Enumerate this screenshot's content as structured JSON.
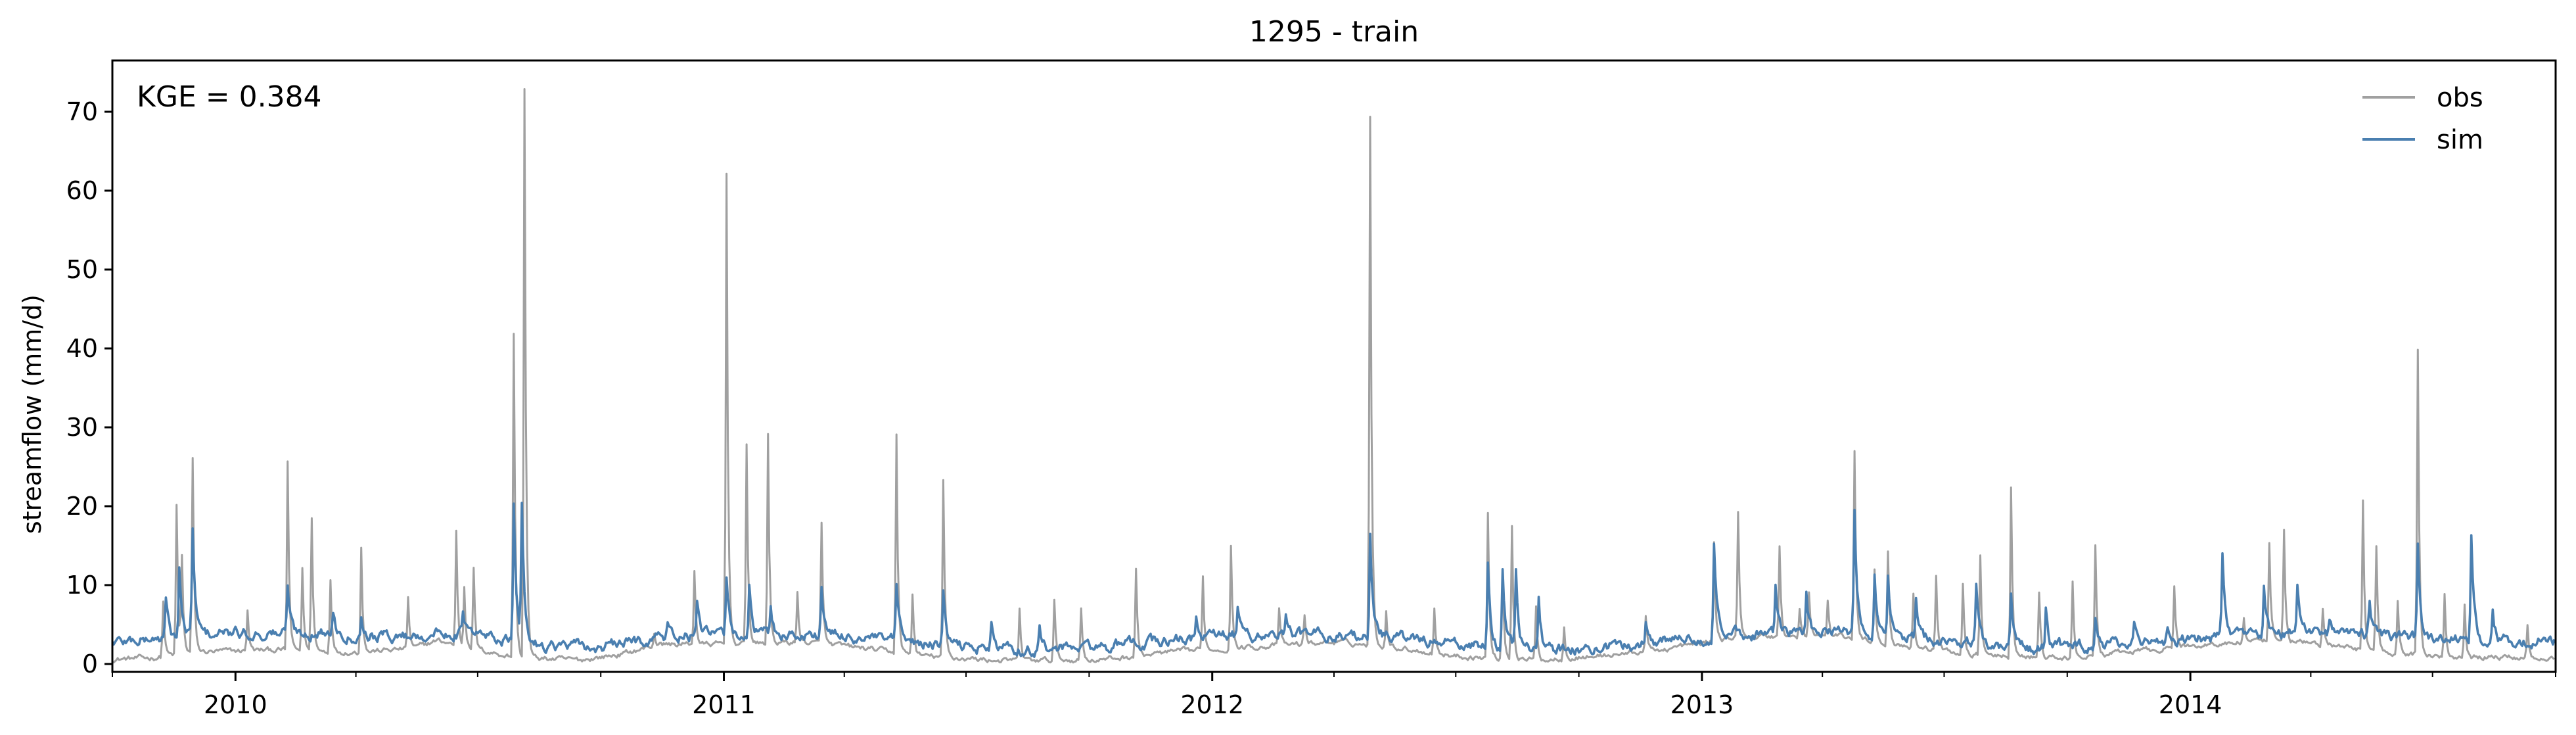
{
  "chart_data": {
    "type": "line",
    "title": "1295 - train",
    "xlabel": "",
    "ylabel": "streamflow (mm/d)",
    "annotation": "KGE = 0.384",
    "xlim": [
      "2009-10-01",
      "2014-09-30"
    ],
    "ylim": [
      -1,
      76.5
    ],
    "yticks": [
      0,
      10,
      20,
      30,
      40,
      50,
      60,
      70
    ],
    "xticks": [
      {
        "date": "2010-01-01",
        "label": "2010"
      },
      {
        "date": "2011-01-01",
        "label": "2011"
      },
      {
        "date": "2012-01-01",
        "label": "2012"
      },
      {
        "date": "2013-01-01",
        "label": "2013"
      },
      {
        "date": "2014-01-01",
        "label": "2014"
      }
    ],
    "legend_position": "top-right",
    "grid": false,
    "series": [
      {
        "name": "obs",
        "color": "#a0a0a0",
        "baseline": [
          [
            "2009-10-01",
            0.6
          ],
          [
            "2009-11-01",
            0.8
          ],
          [
            "2009-12-01",
            1.5
          ],
          [
            "2010-02-01",
            1.8
          ],
          [
            "2010-04-01",
            1.5
          ],
          [
            "2010-05-15",
            2.0
          ],
          [
            "2010-06-01",
            3.0
          ],
          [
            "2010-06-25",
            2.0
          ],
          [
            "2010-08-01",
            0.8
          ],
          [
            "2010-09-15",
            0.5
          ],
          [
            "2010-10-15",
            1.2
          ],
          [
            "2010-11-15",
            2.5
          ],
          [
            "2011-01-15",
            2.5
          ],
          [
            "2011-03-01",
            2.8
          ],
          [
            "2011-04-15",
            2.0
          ],
          [
            "2011-06-01",
            1.0
          ],
          [
            "2011-08-01",
            0.4
          ],
          [
            "2011-10-15",
            0.6
          ],
          [
            "2011-12-01",
            1.5
          ],
          [
            "2012-01-15",
            2.0
          ],
          [
            "2012-04-01",
            2.8
          ],
          [
            "2012-05-15",
            2.2
          ],
          [
            "2012-07-01",
            1.0
          ],
          [
            "2012-09-01",
            0.5
          ],
          [
            "2012-10-15",
            1.0
          ],
          [
            "2012-12-01",
            1.8
          ],
          [
            "2013-02-01",
            3.5
          ],
          [
            "2013-04-15",
            3.5
          ],
          [
            "2013-06-15",
            2.0
          ],
          [
            "2013-08-01",
            1.0
          ],
          [
            "2013-10-01",
            0.7
          ],
          [
            "2013-11-15",
            1.5
          ],
          [
            "2014-01-15",
            2.5
          ],
          [
            "2014-03-15",
            3.0
          ],
          [
            "2014-05-01",
            2.0
          ],
          [
            "2014-07-01",
            1.0
          ],
          [
            "2014-09-30",
            0.8
          ]
        ],
        "peaks": [
          [
            "2009-11-08",
            8
          ],
          [
            "2009-11-18",
            20
          ],
          [
            "2009-11-22",
            13
          ],
          [
            "2009-11-30",
            26
          ],
          [
            "2010-01-10",
            7
          ],
          [
            "2010-02-09",
            25.5
          ],
          [
            "2010-02-20",
            12
          ],
          [
            "2010-02-27",
            18.5
          ],
          [
            "2010-03-13",
            11
          ],
          [
            "2010-04-05",
            15
          ],
          [
            "2010-05-10",
            8.5
          ],
          [
            "2010-06-15",
            17
          ],
          [
            "2010-06-21",
            10
          ],
          [
            "2010-06-28",
            12
          ],
          [
            "2010-07-28",
            42
          ],
          [
            "2010-08-05",
            73
          ],
          [
            "2010-11-10",
            4
          ],
          [
            "2010-12-10",
            12
          ],
          [
            "2011-01-03",
            62
          ],
          [
            "2011-01-18",
            28
          ],
          [
            "2011-02-03",
            29
          ],
          [
            "2011-02-25",
            9
          ],
          [
            "2011-03-15",
            18
          ],
          [
            "2011-05-10",
            29
          ],
          [
            "2011-05-22",
            9
          ],
          [
            "2011-06-14",
            23
          ],
          [
            "2011-08-10",
            7
          ],
          [
            "2011-09-05",
            8
          ],
          [
            "2011-09-25",
            7
          ],
          [
            "2011-11-05",
            12
          ],
          [
            "2011-12-25",
            11
          ],
          [
            "2012-01-15",
            15
          ],
          [
            "2012-02-20",
            7
          ],
          [
            "2012-03-10",
            6
          ],
          [
            "2012-04-28",
            69.5
          ],
          [
            "2012-05-10",
            7
          ],
          [
            "2012-06-15",
            7
          ],
          [
            "2012-07-25",
            19
          ],
          [
            "2012-08-05",
            12
          ],
          [
            "2012-08-12",
            17.5
          ],
          [
            "2012-08-30",
            7
          ],
          [
            "2012-09-20",
            5
          ],
          [
            "2012-11-20",
            6
          ],
          [
            "2013-01-10",
            15.5
          ],
          [
            "2013-01-28",
            19
          ],
          [
            "2013-02-28",
            15
          ],
          [
            "2013-03-15",
            7
          ],
          [
            "2013-03-22",
            9
          ],
          [
            "2013-04-05",
            8
          ],
          [
            "2013-04-25",
            27
          ],
          [
            "2013-05-10",
            12
          ],
          [
            "2013-05-20",
            14.5
          ],
          [
            "2013-06-08",
            9
          ],
          [
            "2013-06-25",
            11
          ],
          [
            "2013-07-15",
            10
          ],
          [
            "2013-07-28",
            14
          ],
          [
            "2013-08-20",
            22.5
          ],
          [
            "2013-09-10",
            9
          ],
          [
            "2013-10-05",
            10
          ],
          [
            "2013-10-22",
            15
          ],
          [
            "2013-12-20",
            10
          ],
          [
            "2014-02-10",
            6
          ],
          [
            "2014-03-01",
            15
          ],
          [
            "2014-03-12",
            17
          ],
          [
            "2014-04-10",
            7
          ],
          [
            "2014-05-10",
            21
          ],
          [
            "2014-05-20",
            15
          ],
          [
            "2014-06-05",
            8
          ],
          [
            "2014-06-20",
            40
          ],
          [
            "2014-07-10",
            9
          ],
          [
            "2014-07-25",
            8
          ],
          [
            "2014-09-10",
            5
          ]
        ]
      },
      {
        "name": "sim",
        "color": "#4a7fb0",
        "baseline": [
          [
            "2009-10-01",
            2.8
          ],
          [
            "2009-12-15",
            3.8
          ],
          [
            "2010-03-01",
            4.0
          ],
          [
            "2010-05-01",
            3.5
          ],
          [
            "2010-06-15",
            4.0
          ],
          [
            "2010-08-15",
            2.5
          ],
          [
            "2010-10-01",
            2.0
          ],
          [
            "2010-11-15",
            3.5
          ],
          [
            "2011-02-01",
            3.8
          ],
          [
            "2011-04-01",
            3.5
          ],
          [
            "2011-06-01",
            2.5
          ],
          [
            "2011-08-15",
            1.8
          ],
          [
            "2011-10-15",
            2.2
          ],
          [
            "2012-01-01",
            3.5
          ],
          [
            "2012-03-01",
            3.8
          ],
          [
            "2012-05-15",
            3.5
          ],
          [
            "2012-07-01",
            2.5
          ],
          [
            "2012-09-01",
            1.8
          ],
          [
            "2012-10-15",
            2.0
          ],
          [
            "2012-12-15",
            3.2
          ],
          [
            "2013-02-01",
            3.8
          ],
          [
            "2013-05-01",
            4.0
          ],
          [
            "2013-07-01",
            3.0
          ],
          [
            "2013-09-01",
            2.0
          ],
          [
            "2013-10-15",
            2.3
          ],
          [
            "2013-12-15",
            3.0
          ],
          [
            "2014-03-01",
            3.8
          ],
          [
            "2014-05-15",
            3.8
          ],
          [
            "2014-07-15",
            3.0
          ],
          [
            "2014-09-30",
            3.0
          ]
        ],
        "peaks": [
          [
            "2009-11-10",
            8
          ],
          [
            "2009-11-20",
            12
          ],
          [
            "2009-11-30",
            17
          ],
          [
            "2010-02-09",
            10
          ],
          [
            "2010-03-15",
            7
          ],
          [
            "2010-04-05",
            6
          ],
          [
            "2010-06-20",
            7
          ],
          [
            "2010-07-28",
            19.5
          ],
          [
            "2010-08-03",
            19.5
          ],
          [
            "2010-11-20",
            5
          ],
          [
            "2010-12-12",
            7.5
          ],
          [
            "2011-01-03",
            11
          ],
          [
            "2011-01-20",
            10
          ],
          [
            "2011-02-05",
            7
          ],
          [
            "2011-03-15",
            10
          ],
          [
            "2011-05-10",
            10
          ],
          [
            "2011-06-14",
            9
          ],
          [
            "2011-07-20",
            5
          ],
          [
            "2011-08-25",
            4.5
          ],
          [
            "2011-12-20",
            6
          ],
          [
            "2012-01-20",
            7
          ],
          [
            "2012-02-25",
            6.5
          ],
          [
            "2012-04-28",
            17
          ],
          [
            "2012-07-25",
            13
          ],
          [
            "2012-08-05",
            12
          ],
          [
            "2012-08-15",
            12
          ],
          [
            "2012-09-01",
            9
          ],
          [
            "2012-11-20",
            5.5
          ],
          [
            "2013-01-10",
            16
          ],
          [
            "2013-02-25",
            10
          ],
          [
            "2013-03-20",
            9.5
          ],
          [
            "2013-04-25",
            19.5
          ],
          [
            "2013-05-10",
            12
          ],
          [
            "2013-05-20",
            11
          ],
          [
            "2013-06-10",
            8
          ],
          [
            "2013-07-25",
            10
          ],
          [
            "2013-08-20",
            9
          ],
          [
            "2013-09-15",
            7
          ],
          [
            "2013-10-22",
            7
          ],
          [
            "2013-11-20",
            5.5
          ],
          [
            "2013-12-15",
            5
          ],
          [
            "2014-01-25",
            13.5
          ],
          [
            "2014-02-25",
            10
          ],
          [
            "2014-03-22",
            10
          ],
          [
            "2014-04-15",
            6
          ],
          [
            "2014-05-15",
            8
          ],
          [
            "2014-06-20",
            15
          ],
          [
            "2014-07-30",
            16
          ],
          [
            "2014-08-15",
            7
          ]
        ]
      }
    ]
  }
}
